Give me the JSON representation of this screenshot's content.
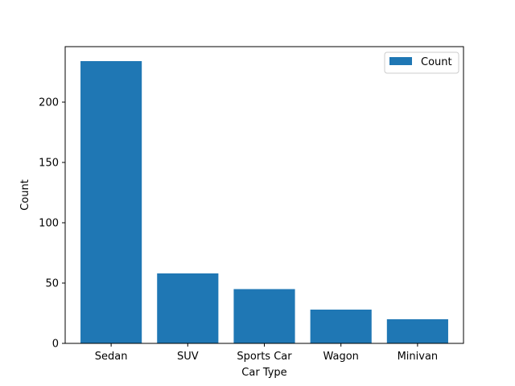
{
  "chart_data": {
    "type": "bar",
    "categories": [
      "Sedan",
      "SUV",
      "Sports Car",
      "Wagon",
      "Minivan"
    ],
    "series": [
      {
        "name": "Count",
        "values": [
          234,
          58,
          45,
          28,
          20
        ],
        "color": "#1f77b4"
      }
    ],
    "title": "",
    "xlabel": "Car Type",
    "ylabel": "Count",
    "ylim": [
      0,
      246
    ],
    "yticks": [
      0,
      50,
      100,
      150,
      200
    ],
    "grid": false,
    "legend": {
      "placement": "top-right"
    }
  }
}
